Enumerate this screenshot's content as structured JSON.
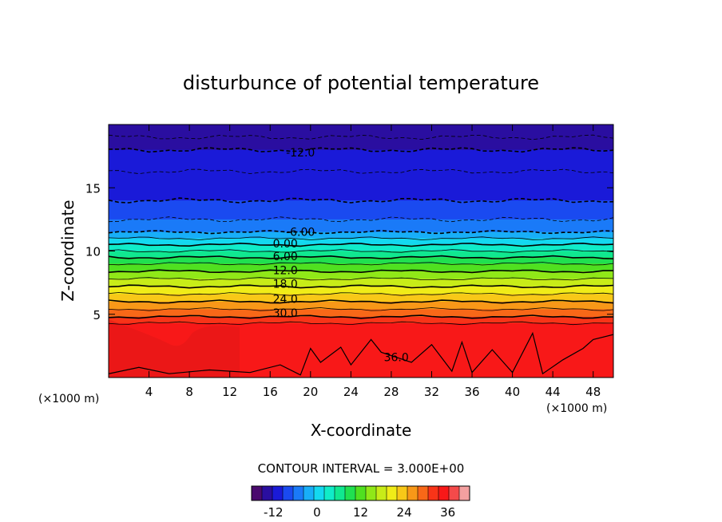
{
  "chart_data": {
    "type": "heatmap",
    "title": "disturbunce of potential temperature",
    "xlabel": "X-coordinate",
    "ylabel": "Z-coordinate",
    "x_unit_left": "(×1000 m)",
    "x_unit_right": "(×1000 m)",
    "xlim": [
      0,
      50
    ],
    "ylim": [
      0,
      20
    ],
    "x_ticks": [
      4,
      8,
      12,
      16,
      20,
      24,
      28,
      32,
      36,
      40,
      44,
      48
    ],
    "y_ticks": [
      5,
      10,
      15
    ],
    "contour_interval_text": "CONTOUR INTERVAL = 3.000E+00",
    "contour_labels": [
      {
        "text": "-12.0",
        "x": 19.0,
        "z": 17.8
      },
      {
        "text": "-6.00",
        "x": 19.0,
        "z": 11.5
      },
      {
        "text": "0.00",
        "x": 17.5,
        "z": 10.6
      },
      {
        "text": "6.00",
        "x": 17.5,
        "z": 9.6
      },
      {
        "text": "12.0",
        "x": 17.5,
        "z": 8.5
      },
      {
        "text": "18.0",
        "x": 17.5,
        "z": 7.4
      },
      {
        "text": "24.0",
        "x": 17.5,
        "z": 6.2
      },
      {
        "text": "30.0",
        "x": 17.5,
        "z": 5.1
      },
      {
        "text": "36.0",
        "x": 28.5,
        "z": 1.6
      }
    ],
    "bands_z": [
      {
        "z0": 19.0,
        "z1": 20.0,
        "value": -15
      },
      {
        "z0": 18.0,
        "z1": 19.0,
        "value": -13.5
      },
      {
        "z0": 16.3,
        "z1": 18.0,
        "value": -12
      },
      {
        "z0": 14.0,
        "z1": 16.3,
        "value": -10
      },
      {
        "z0": 12.5,
        "z1": 14.0,
        "value": -8.5
      },
      {
        "z0": 11.5,
        "z1": 12.5,
        "value": -6
      },
      {
        "z0": 11.0,
        "z1": 11.5,
        "value": -3
      },
      {
        "z0": 10.5,
        "z1": 11.0,
        "value": 0
      },
      {
        "z0": 10.0,
        "z1": 10.5,
        "value": 3
      },
      {
        "z0": 9.5,
        "z1": 10.0,
        "value": 6
      },
      {
        "z0": 9.0,
        "z1": 9.5,
        "value": 9
      },
      {
        "z0": 8.4,
        "z1": 9.0,
        "value": 12
      },
      {
        "z0": 7.8,
        "z1": 8.4,
        "value": 15
      },
      {
        "z0": 7.2,
        "z1": 7.8,
        "value": 18
      },
      {
        "z0": 6.6,
        "z1": 7.2,
        "value": 21
      },
      {
        "z0": 6.0,
        "z1": 6.6,
        "value": 24
      },
      {
        "z0": 5.4,
        "z1": 6.0,
        "value": 27
      },
      {
        "z0": 4.8,
        "z1": 5.4,
        "value": 30
      },
      {
        "z0": 4.3,
        "z1": 4.8,
        "value": 33
      },
      {
        "z0": 0.0,
        "z1": 4.3,
        "value": 36
      }
    ],
    "colorbar": {
      "tick_labels": [
        "-12",
        "0",
        "12",
        "24",
        "36"
      ],
      "tick_values": [
        -12,
        0,
        12,
        24,
        36
      ],
      "min": -18,
      "max": 42,
      "colors": [
        "#4a0a6e",
        "#2a0ea0",
        "#1a1ad8",
        "#1a4af0",
        "#1a7af8",
        "#18aef8",
        "#14d8f0",
        "#10ecc8",
        "#10e890",
        "#20e050",
        "#50e020",
        "#90e818",
        "#c8ec18",
        "#f0ec18",
        "#f8c818",
        "#f89818",
        "#f86818",
        "#f83418",
        "#f81818",
        "#f44a4a",
        "#f4a0a0"
      ]
    },
    "grid": false,
    "legend": "colorbar bottom"
  }
}
